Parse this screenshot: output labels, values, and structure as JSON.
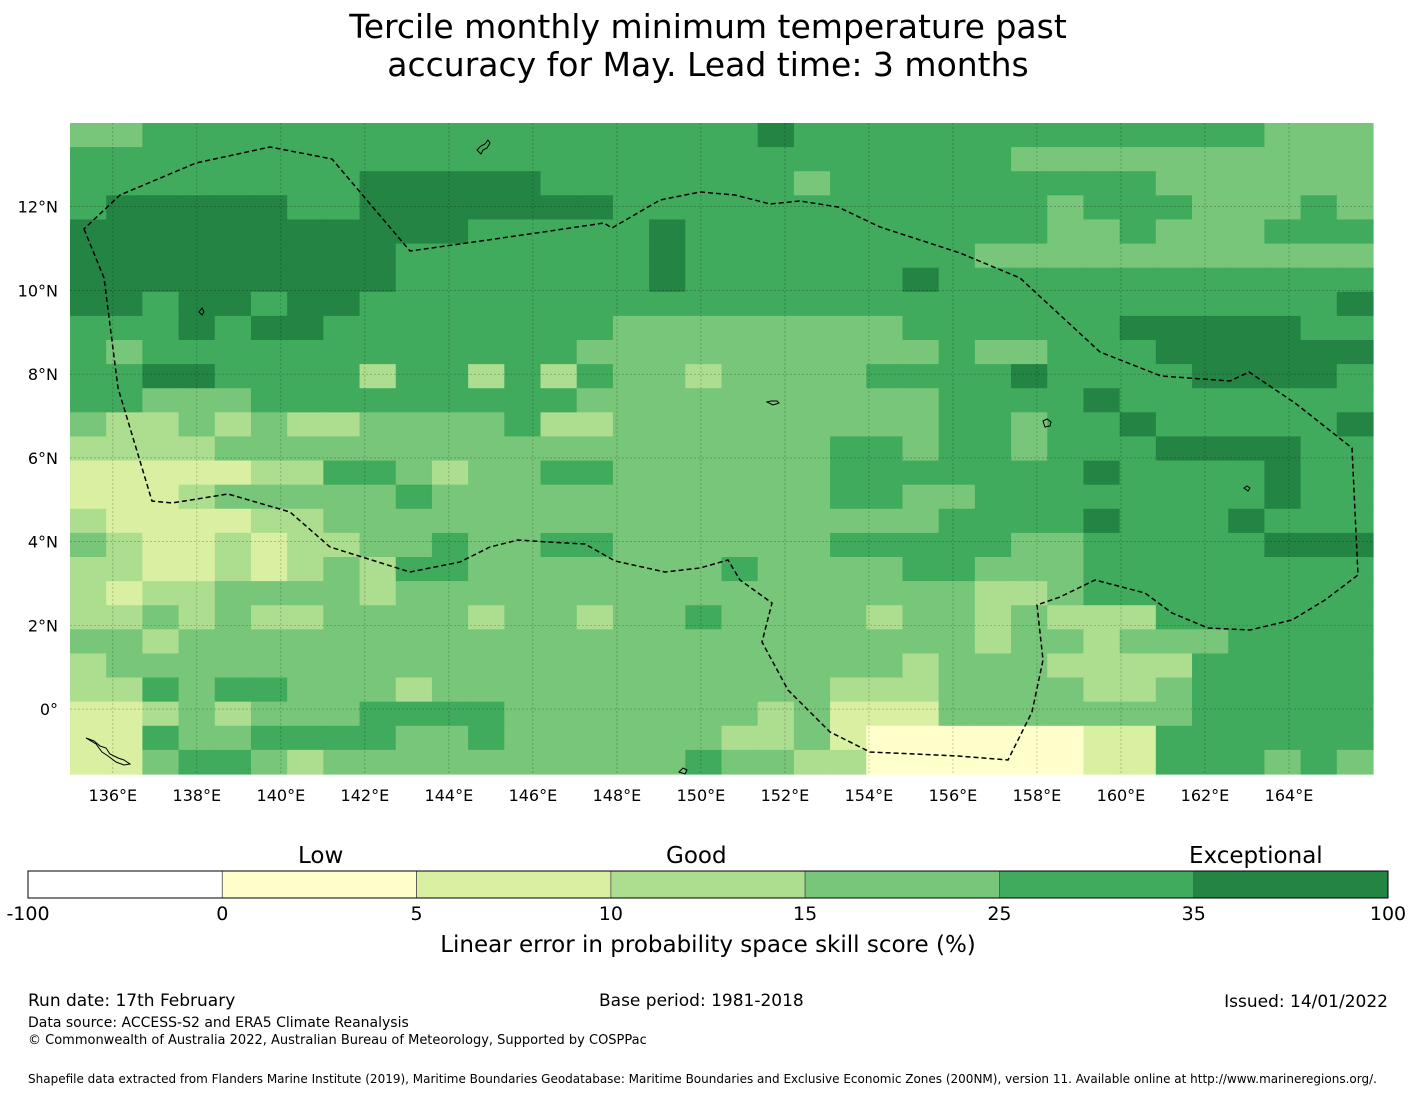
{
  "title": {
    "line1": "Tercile monthly minimum temperature past",
    "line2": "accuracy for May. Lead time: 3 months"
  },
  "map": {
    "lon_labels": [
      "136°E",
      "138°E",
      "140°E",
      "142°E",
      "144°E",
      "146°E",
      "148°E",
      "150°E",
      "152°E",
      "154°E",
      "156°E",
      "158°E",
      "160°E",
      "162°E",
      "164°E"
    ],
    "lat_labels": [
      "12°N",
      "10°N",
      "8°N",
      "6°N",
      "4°N",
      "2°N",
      "0°"
    ],
    "lon_values": [
      136,
      138,
      140,
      142,
      144,
      146,
      148,
      150,
      152,
      154,
      156,
      158,
      160,
      162,
      164
    ],
    "lat_values": [
      12,
      10,
      8,
      6,
      4,
      2,
      0
    ],
    "lon_range": [
      134.98,
      166.0
    ],
    "lat_range": [
      -1.55,
      14.0
    ],
    "grid_resolution_deg": 0.833,
    "grid_rows_north_to_south": [
      "445555555555555555565555555555555444",
      "555555555555555555555555554444444444",
      "555555556666655555554555555555444444",
      "566666556666666555555555555455544454",
      "666666666665555565555555555445444555",
      "666666666555555565555555544444444444",
      "666666666555555565555556555555555555",
      "665665665555555555555555555555555556",
      "555656655555555444444445555556666655",
      "545555555555554444444444544555666666",
      "556655553553535443444455556555566665",
      "554445555555554444444444555565555555",
      "433434334444533444444444554556555556",
      "333344444444444444444554554555666655",
      "222223355434455444444555555565555655",
      "222344444544444444444554455555555655",
      "322223344444444444444444555565556555",
      "432232334454455444444555554455555666",
      "332232343554444444544445544455555555",
      "323344443444444444444444433455555555",
      "334343344443443445444434434333555555",
      "443444444444444444444444434434445555",
      "344444444444444444444443444333355555",
      "335455444344444444444333444433455555",
      "223434445555444444434222444444455555",
      "225445555445444444334211111122555555",
      "224554344444444445443311111122555454"
    ],
    "cell_scores_note": "category index 0-6 maps to colorbar bins",
    "eez_label": "dashed EEZ boundary"
  },
  "colorbar": {
    "category_labels": [
      "Low",
      "Good",
      "Exceptional"
    ],
    "tick_labels": [
      "-100",
      "0",
      "5",
      "10",
      "15",
      "25",
      "35",
      "100"
    ],
    "bins": [
      {
        "from": -100,
        "to": 0,
        "color": "#ffffff"
      },
      {
        "from": 0,
        "to": 5,
        "color": "#ffffcc"
      },
      {
        "from": 5,
        "to": 10,
        "color": "#d9f0a3"
      },
      {
        "from": 10,
        "to": 15,
        "color": "#addd8e"
      },
      {
        "from": 15,
        "to": 25,
        "color": "#78c679"
      },
      {
        "from": 25,
        "to": 35,
        "color": "#41ab5d"
      },
      {
        "from": 35,
        "to": 100,
        "color": "#238443"
      }
    ],
    "label": "Linear error in probability space skill score (%)"
  },
  "footer": {
    "run_date": "Run date: 17th February",
    "base_period": "Base period: 1981-2018",
    "issued": "Issued: 14/01/2022",
    "data_source": "Data source: ACCESS-S2 and ERA5 Climate Reanalysis",
    "copyright": "© Commonwealth of Australia 2022, Australian Bureau of Meteorology, Supported by COSPPac",
    "shapefile": "Shapefile data extracted from Flanders Marine Institute (2019), Maritime Boundaries Geodatabase: Maritime Boundaries and Exclusive Economic Zones (200NM), version 11. Available online at http://www.marineregions.org/."
  }
}
